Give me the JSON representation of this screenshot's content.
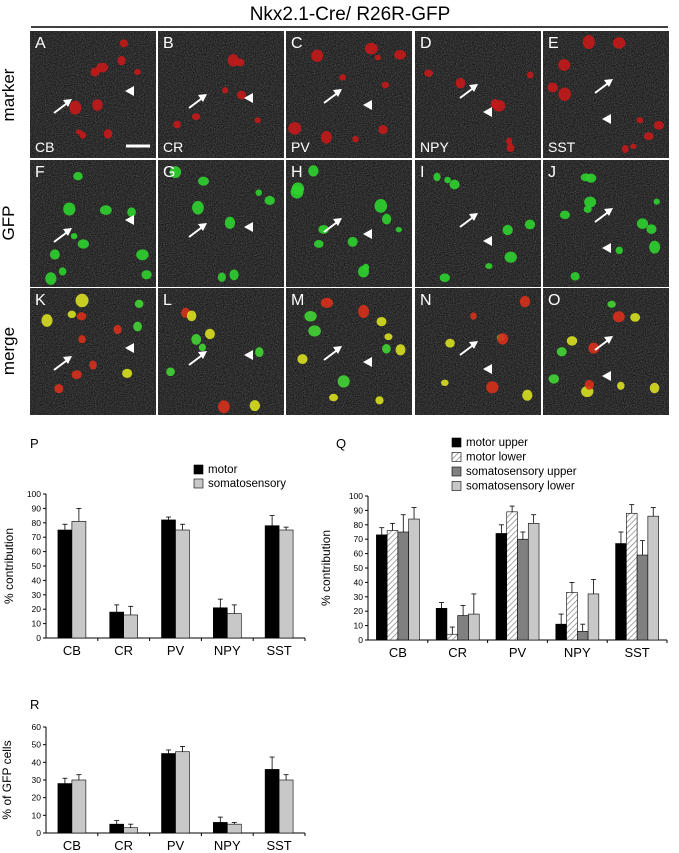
{
  "title": "Nkx2.1-Cre/ R26R-GFP",
  "row_labels": [
    "marker",
    "GFP",
    "merge"
  ],
  "micrographs": {
    "rows": [
      {
        "key": "marker",
        "panels": [
          {
            "letter": "A",
            "marker": "CB"
          },
          {
            "letter": "B",
            "marker": "CR"
          },
          {
            "letter": "C",
            "marker": "PV"
          },
          {
            "letter": "D",
            "marker": "NPY"
          },
          {
            "letter": "E",
            "marker": "SST"
          }
        ]
      },
      {
        "key": "GFP",
        "panels": [
          {
            "letter": "F"
          },
          {
            "letter": "G"
          },
          {
            "letter": "H"
          },
          {
            "letter": "I"
          },
          {
            "letter": "J"
          }
        ]
      },
      {
        "key": "merge",
        "panels": [
          {
            "letter": "K"
          },
          {
            "letter": "L"
          },
          {
            "letter": "M"
          },
          {
            "letter": "N"
          },
          {
            "letter": "O"
          }
        ]
      }
    ],
    "colors": {
      "marker": "#c41a1a",
      "GFP": "#2fd12f",
      "merge": "#d8e020"
    }
  },
  "chart_data": [
    {
      "panel": "P",
      "type": "bar",
      "categories": [
        "CB",
        "CR",
        "PV",
        "NPY",
        "SST"
      ],
      "series": [
        {
          "name": "motor",
          "values": [
            75,
            18,
            82,
            21,
            78
          ],
          "errors": [
            4,
            5,
            2,
            6,
            7
          ],
          "color": "#000000"
        },
        {
          "name": "somatosensory",
          "values": [
            81,
            16,
            75,
            17,
            75
          ],
          "errors": [
            9,
            6,
            4,
            6,
            2
          ],
          "color": "#c8c8c8"
        }
      ],
      "ylabel": "% contribution",
      "ylim": [
        0,
        100
      ],
      "yticks": [
        0,
        10,
        20,
        30,
        40,
        50,
        60,
        70,
        80,
        90,
        100
      ],
      "legend": "top-right"
    },
    {
      "panel": "Q",
      "type": "bar",
      "categories": [
        "CB",
        "CR",
        "PV",
        "NPY",
        "SST"
      ],
      "series": [
        {
          "name": "motor upper",
          "values": [
            73,
            22,
            74,
            11,
            67
          ],
          "errors": [
            5,
            4,
            6,
            7,
            8
          ],
          "color": "#000000"
        },
        {
          "name": "motor lower",
          "values": [
            76,
            4,
            89,
            33,
            88
          ],
          "errors": [
            5,
            5,
            4,
            7,
            6
          ],
          "color": "#ffffff",
          "pattern": "hatch"
        },
        {
          "name": "somatosensory upper",
          "values": [
            75,
            17,
            70,
            6,
            59
          ],
          "errors": [
            12,
            7,
            5,
            5,
            10
          ],
          "color": "#808080"
        },
        {
          "name": "somatosensory lower",
          "values": [
            84,
            18,
            81,
            32,
            86
          ],
          "errors": [
            8,
            14,
            6,
            10,
            6
          ],
          "color": "#c8c8c8"
        }
      ],
      "ylabel": "% contribution",
      "ylim": [
        0,
        100
      ],
      "yticks": [
        0,
        10,
        20,
        30,
        40,
        50,
        60,
        70,
        80,
        90,
        100
      ],
      "legend": "top"
    },
    {
      "panel": "R",
      "type": "bar",
      "categories": [
        "CB",
        "CR",
        "PV",
        "NPY",
        "SST"
      ],
      "series": [
        {
          "values": [
            28,
            5,
            45,
            6,
            36
          ],
          "errors": [
            3,
            2,
            2,
            3,
            7
          ],
          "color": "#000000"
        },
        {
          "values": [
            30,
            3,
            46,
            5,
            30
          ],
          "errors": [
            3,
            2,
            3,
            1,
            3
          ],
          "color": "#c8c8c8"
        }
      ],
      "ylabel": "% of GFP cells",
      "ylim": [
        0,
        60
      ],
      "yticks": [
        0,
        10,
        20,
        30,
        40,
        50,
        60
      ]
    }
  ]
}
